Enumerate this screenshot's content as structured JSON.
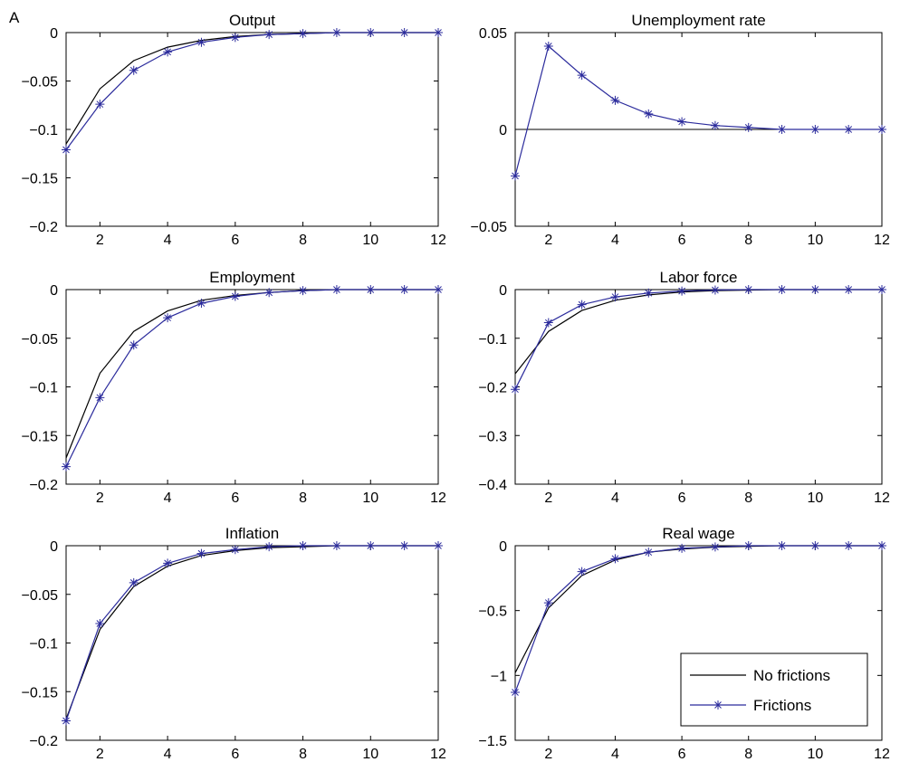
{
  "figure_label": "A",
  "chart_data": [
    {
      "type": "line",
      "title": "Output",
      "x": [
        1,
        2,
        3,
        4,
        5,
        6,
        7,
        8,
        9,
        10,
        11,
        12
      ],
      "xlim": [
        1,
        12
      ],
      "ylim": [
        -0.2,
        0
      ],
      "xticks": [
        2,
        4,
        6,
        8,
        10,
        12
      ],
      "xtick_labels": [
        "2",
        "4",
        "6",
        "8",
        "10",
        "12"
      ],
      "yticks": [
        -0.2,
        -0.15,
        -0.1,
        -0.05,
        0
      ],
      "ytick_labels": [
        "−0.2",
        "−0.15",
        "−0.1",
        "−0.05",
        "0"
      ],
      "zero_line": false,
      "series": [
        {
          "name": "No frictions",
          "color": "#000000",
          "marker": "none",
          "values": [
            -0.115,
            -0.058,
            -0.029,
            -0.015,
            -0.008,
            -0.004,
            -0.002,
            -0.001,
            0,
            0,
            0,
            0
          ]
        },
        {
          "name": "Frictions",
          "color": "#2b2b9c",
          "marker": "asterisk",
          "values": [
            -0.121,
            -0.074,
            -0.039,
            -0.02,
            -0.01,
            -0.005,
            -0.002,
            -0.001,
            0,
            0,
            0,
            0
          ]
        }
      ]
    },
    {
      "type": "line",
      "title": "Unemployment rate",
      "x": [
        1,
        2,
        3,
        4,
        5,
        6,
        7,
        8,
        9,
        10,
        11,
        12
      ],
      "xlim": [
        1,
        12
      ],
      "ylim": [
        -0.05,
        0.05
      ],
      "xticks": [
        2,
        4,
        6,
        8,
        10,
        12
      ],
      "xtick_labels": [
        "2",
        "4",
        "6",
        "8",
        "10",
        "12"
      ],
      "yticks": [
        -0.05,
        0,
        0.05
      ],
      "ytick_labels": [
        "−0.05",
        "0",
        "0.05"
      ],
      "zero_line": true,
      "series": [
        {
          "name": "Frictions",
          "color": "#2b2b9c",
          "marker": "asterisk",
          "values": [
            -0.024,
            0.043,
            0.028,
            0.015,
            0.008,
            0.004,
            0.002,
            0.001,
            0,
            0,
            0,
            0
          ]
        }
      ]
    },
    {
      "type": "line",
      "title": "Employment",
      "x": [
        1,
        2,
        3,
        4,
        5,
        6,
        7,
        8,
        9,
        10,
        11,
        12
      ],
      "xlim": [
        1,
        12
      ],
      "ylim": [
        -0.2,
        0
      ],
      "xticks": [
        2,
        4,
        6,
        8,
        10,
        12
      ],
      "xtick_labels": [
        "2",
        "4",
        "6",
        "8",
        "10",
        "12"
      ],
      "yticks": [
        -0.2,
        -0.15,
        -0.1,
        -0.05,
        0
      ],
      "ytick_labels": [
        "−0.2",
        "−0.15",
        "−0.1",
        "−0.05",
        "0"
      ],
      "zero_line": false,
      "series": [
        {
          "name": "No frictions",
          "color": "#000000",
          "marker": "none",
          "values": [
            -0.173,
            -0.086,
            -0.043,
            -0.022,
            -0.011,
            -0.006,
            -0.003,
            -0.001,
            0,
            0,
            0,
            0
          ]
        },
        {
          "name": "Frictions",
          "color": "#2b2b9c",
          "marker": "asterisk",
          "values": [
            -0.182,
            -0.111,
            -0.057,
            -0.029,
            -0.014,
            -0.007,
            -0.003,
            -0.001,
            0,
            0,
            0,
            0
          ]
        }
      ]
    },
    {
      "type": "line",
      "title": "Labor force",
      "x": [
        1,
        2,
        3,
        4,
        5,
        6,
        7,
        8,
        9,
        10,
        11,
        12
      ],
      "xlim": [
        1,
        12
      ],
      "ylim": [
        -0.4,
        0
      ],
      "xticks": [
        2,
        4,
        6,
        8,
        10,
        12
      ],
      "xtick_labels": [
        "2",
        "4",
        "6",
        "8",
        "10",
        "12"
      ],
      "yticks": [
        -0.4,
        -0.3,
        -0.2,
        -0.1,
        0
      ],
      "ytick_labels": [
        "−0.4",
        "−0.3",
        "−0.2",
        "−0.1",
        "0"
      ],
      "zero_line": false,
      "series": [
        {
          "name": "No frictions",
          "color": "#000000",
          "marker": "none",
          "values": [
            -0.173,
            -0.086,
            -0.043,
            -0.022,
            -0.011,
            -0.005,
            -0.002,
            -0.001,
            0,
            0,
            0,
            0
          ]
        },
        {
          "name": "Frictions",
          "color": "#2b2b9c",
          "marker": "asterisk",
          "values": [
            -0.205,
            -0.068,
            -0.031,
            -0.015,
            -0.007,
            -0.003,
            -0.001,
            0,
            0,
            0,
            0,
            0
          ]
        }
      ]
    },
    {
      "type": "line",
      "title": "Inflation",
      "x": [
        1,
        2,
        3,
        4,
        5,
        6,
        7,
        8,
        9,
        10,
        11,
        12
      ],
      "xlim": [
        1,
        12
      ],
      "ylim": [
        -0.2,
        0
      ],
      "xticks": [
        2,
        4,
        6,
        8,
        10,
        12
      ],
      "xtick_labels": [
        "2",
        "4",
        "6",
        "8",
        "10",
        "12"
      ],
      "yticks": [
        -0.2,
        -0.15,
        -0.1,
        -0.05,
        0
      ],
      "ytick_labels": [
        "−0.2",
        "−0.15",
        "−0.1",
        "−0.05",
        "0"
      ],
      "zero_line": false,
      "series": [
        {
          "name": "No frictions",
          "color": "#000000",
          "marker": "none",
          "values": [
            -0.178,
            -0.086,
            -0.042,
            -0.021,
            -0.01,
            -0.005,
            -0.002,
            -0.001,
            0,
            0,
            0,
            0
          ]
        },
        {
          "name": "Frictions",
          "color": "#2b2b9c",
          "marker": "asterisk",
          "values": [
            -0.18,
            -0.08,
            -0.038,
            -0.018,
            -0.008,
            -0.004,
            -0.001,
            0,
            0,
            0,
            0,
            0
          ]
        }
      ]
    },
    {
      "type": "line",
      "title": "Real wage",
      "x": [
        1,
        2,
        3,
        4,
        5,
        6,
        7,
        8,
        9,
        10,
        11,
        12
      ],
      "xlim": [
        1,
        12
      ],
      "ylim": [
        -1.5,
        0
      ],
      "xticks": [
        2,
        4,
        6,
        8,
        10,
        12
      ],
      "xtick_labels": [
        "2",
        "4",
        "6",
        "8",
        "10",
        "12"
      ],
      "yticks": [
        -1.5,
        -1,
        -0.5,
        0
      ],
      "ytick_labels": [
        "−1.5",
        "−1",
        "−0.5",
        "0"
      ],
      "zero_line": false,
      "legend": {
        "position": "bottom-right",
        "entries": [
          "No frictions",
          "Frictions"
        ]
      },
      "series": [
        {
          "name": "No frictions",
          "color": "#000000",
          "marker": "none",
          "values": [
            -0.98,
            -0.48,
            -0.23,
            -0.11,
            -0.05,
            -0.025,
            -0.012,
            -0.005,
            0,
            0,
            0,
            0
          ]
        },
        {
          "name": "Frictions",
          "color": "#2b2b9c",
          "marker": "asterisk",
          "values": [
            -1.13,
            -0.44,
            -0.2,
            -0.1,
            -0.05,
            -0.02,
            -0.01,
            0,
            0,
            0,
            0,
            0
          ]
        }
      ]
    }
  ]
}
